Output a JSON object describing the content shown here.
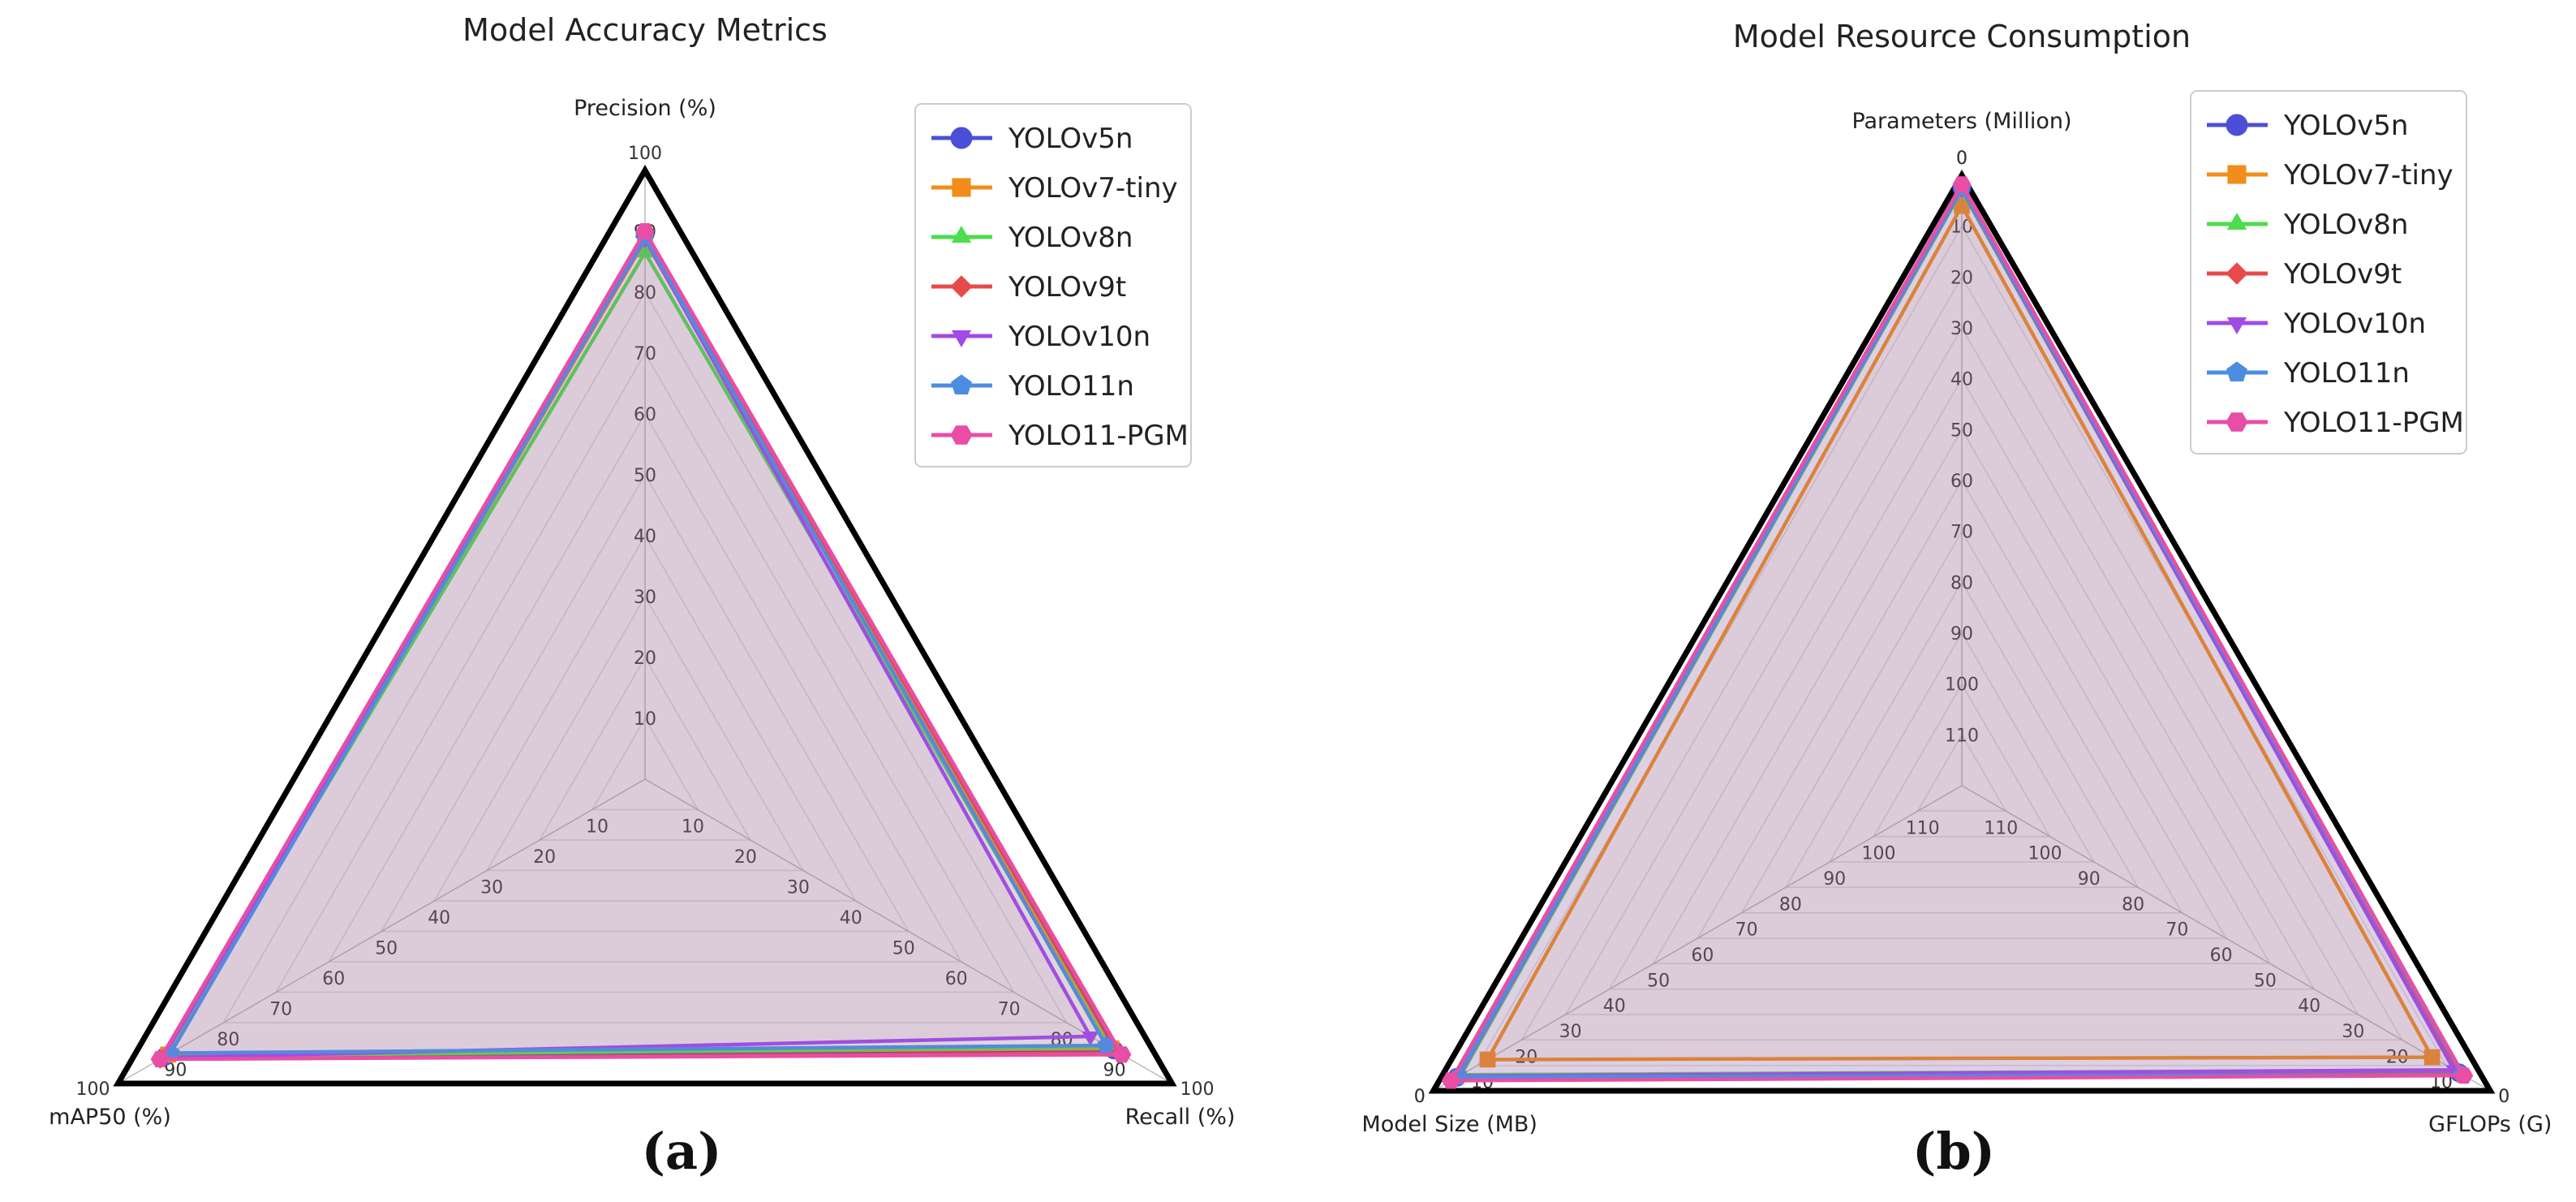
{
  "panels": [
    "(a)",
    "(b)"
  ],
  "chart_data": [
    {
      "type": "radar",
      "title": "Model Accuracy Metrics",
      "axes": [
        "Precision (%)",
        "Recall (%)",
        "mAP50 (%)"
      ],
      "range": [
        0,
        100
      ],
      "reversed": false,
      "ticks": [
        10,
        20,
        30,
        40,
        50,
        60,
        70,
        80,
        90,
        100
      ],
      "legend_position": "top-right",
      "series": [
        {
          "name": "YOLOv5n",
          "color": "#4b4fd8",
          "marker": "circle",
          "values": [
            89.5,
            89.0,
            91.0
          ]
        },
        {
          "name": "YOLOv7-tiny",
          "color": "#f28c1b",
          "marker": "square",
          "values": [
            88.5,
            88.5,
            90.5
          ]
        },
        {
          "name": "YOLOv8n",
          "color": "#4ddd4d",
          "marker": "triangle-up",
          "values": [
            86.5,
            88.0,
            91.0
          ]
        },
        {
          "name": "YOLOv9t",
          "color": "#e84a4a",
          "marker": "diamond",
          "values": [
            89.5,
            90.0,
            92.0
          ]
        },
        {
          "name": "YOLOv10n",
          "color": "#a14be6",
          "marker": "triangle-down",
          "values": [
            88.8,
            84.5,
            91.5
          ]
        },
        {
          "name": "YOLO11n",
          "color": "#4d8de0",
          "marker": "pentagon",
          "values": [
            89.0,
            87.5,
            90.0
          ]
        },
        {
          "name": "YOLO11-PGM",
          "color": "#e84ea5",
          "marker": "hexagon",
          "values": [
            90.0,
            90.5,
            92.0
          ]
        }
      ]
    },
    {
      "type": "radar",
      "title": "Model Resource Consumption",
      "axes": [
        "Parameters (Million)",
        "GFLOPs (G)",
        "Model Size (MB)"
      ],
      "range": [
        0,
        120
      ],
      "reversed": true,
      "ticks": [
        0,
        10,
        20,
        30,
        40,
        50,
        60,
        70,
        80,
        90,
        100,
        110,
        120
      ],
      "legend_position": "top-right",
      "series": [
        {
          "name": "YOLOv5n",
          "color": "#4b4fd8",
          "marker": "circle",
          "values": [
            2.5,
            7.1,
            5.3
          ]
        },
        {
          "name": "YOLOv7-tiny",
          "color": "#f28c1b",
          "marker": "square",
          "values": [
            6.0,
            13.2,
            12.3
          ]
        },
        {
          "name": "YOLOv8n",
          "color": "#4ddd4d",
          "marker": "triangle-up",
          "values": [
            3.0,
            8.1,
            6.3
          ]
        },
        {
          "name": "YOLOv9t",
          "color": "#e84a4a",
          "marker": "diamond",
          "values": [
            2.0,
            7.7,
            4.6
          ]
        },
        {
          "name": "YOLOv10n",
          "color": "#a14be6",
          "marker": "triangle-down",
          "values": [
            2.7,
            8.2,
            5.8
          ]
        },
        {
          "name": "YOLO11n",
          "color": "#4d8de0",
          "marker": "pentagon",
          "values": [
            2.6,
            6.3,
            5.5
          ]
        },
        {
          "name": "YOLO11-PGM",
          "color": "#e84ea5",
          "marker": "hexagon",
          "values": [
            1.8,
            6.0,
            4.0
          ]
        }
      ]
    }
  ]
}
